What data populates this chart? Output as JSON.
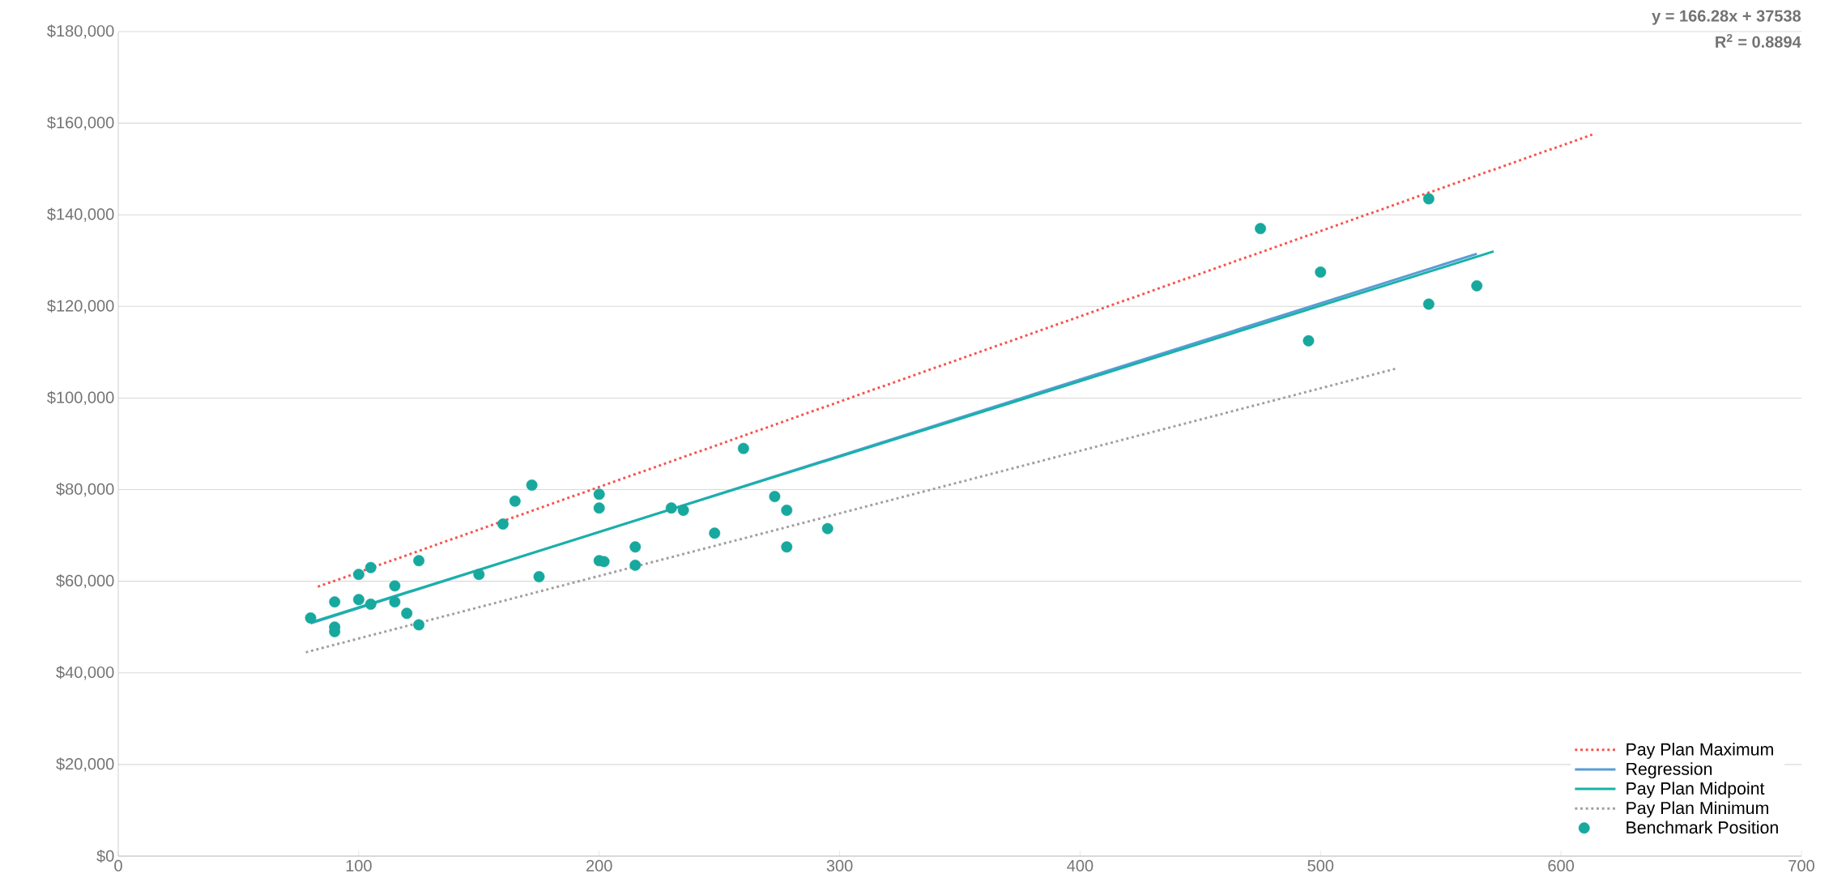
{
  "chart_data": {
    "type": "scatter",
    "xlim": [
      0,
      700
    ],
    "ylim": [
      0,
      180000
    ],
    "xticks": [
      0,
      100,
      200,
      300,
      400,
      500,
      600,
      700
    ],
    "yticks": [
      {
        "value": 0,
        "label": "$0"
      },
      {
        "value": 20000,
        "label": "$20,000"
      },
      {
        "value": 40000,
        "label": "$40,000"
      },
      {
        "value": 60000,
        "label": "$60,000"
      },
      {
        "value": 80000,
        "label": "$80,000"
      },
      {
        "value": 100000,
        "label": "$100,000"
      },
      {
        "value": 120000,
        "label": "$120,000"
      },
      {
        "value": 140000,
        "label": "$140,000"
      },
      {
        "value": 160000,
        "label": "$160,000"
      },
      {
        "value": 180000,
        "label": "$180,000"
      }
    ],
    "grid": "y",
    "legend": "bottom right",
    "marker": "circle",
    "annotations": [
      "y = 166.28x + 37538",
      "R$^{2}$ = 0.8894"
    ],
    "series": [
      {
        "name": "Pay Plan Maximum",
        "type": "line",
        "marker": "none",
        "line_style": "dotted",
        "color": "#f4554f",
        "x": [
          83,
          613
        ],
        "values": [
          58800,
          157500
        ]
      },
      {
        "name": "Regression",
        "type": "line",
        "marker": "none",
        "line_style": "solid",
        "color": "#5b9bd5",
        "x": [
          80,
          565
        ],
        "values": [
          50800,
          131500
        ]
      },
      {
        "name": "Pay Plan Midpoint",
        "type": "line",
        "marker": "none",
        "line_style": "solid",
        "color": "#17b2a8",
        "x": [
          80,
          572
        ],
        "values": [
          51000,
          132000
        ]
      },
      {
        "name": "Pay Plan Minimum",
        "type": "line",
        "marker": "none",
        "line_style": "dotted",
        "color": "#a0a0a0",
        "x": [
          78,
          532
        ],
        "values": [
          44500,
          106500
        ]
      },
      {
        "name": "Benchmark Position",
        "color": "#17a89e",
        "x": [
          80,
          90,
          90,
          90,
          100,
          100,
          105,
          105,
          115,
          115,
          120,
          125,
          125,
          150,
          160,
          165,
          172,
          175,
          200,
          200,
          200,
          202,
          215,
          215,
          230,
          235,
          248,
          260,
          273,
          278,
          278,
          295,
          475,
          495,
          500,
          545,
          545,
          565
        ],
        "values": [
          52000,
          55500,
          50000,
          49000,
          61500,
          56000,
          63000,
          55000,
          59000,
          55500,
          53000,
          64500,
          50500,
          61500,
          72500,
          77500,
          81000,
          61000,
          79000,
          76000,
          64500,
          64300,
          67500,
          63500,
          76000,
          75500,
          70500,
          89000,
          78500,
          75500,
          67500,
          71500,
          137000,
          112500,
          127500,
          143500,
          120500,
          124500
        ]
      }
    ]
  }
}
